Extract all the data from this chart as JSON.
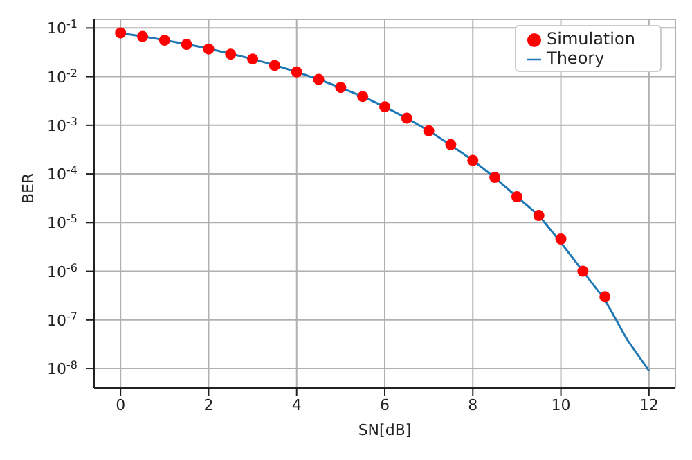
{
  "chart_data": {
    "type": "line",
    "xlabel": "SN[dB]",
    "ylabel": "BER",
    "log": "y",
    "grid": true,
    "legend": "top right",
    "xlim": [
      -0.6,
      12.6
    ],
    "xticks": [
      0,
      2,
      4,
      6,
      8,
      10,
      12
    ],
    "ylim": [
      4e-09,
      0.15
    ],
    "yticks": [
      {
        "value": 1e-08,
        "label": "10$^{-8}$"
      },
      {
        "value": 1e-07,
        "label": "10$^{-7}$"
      },
      {
        "value": 1e-06,
        "label": "10$^{-6}$"
      },
      {
        "value": 1e-05,
        "label": "10$^{-5}$"
      },
      {
        "value": 0.0001,
        "label": "10$^{-4}$"
      },
      {
        "value": 0.001,
        "label": "10$^{-3}$"
      },
      {
        "value": 0.01,
        "label": "10$^{-2}$"
      },
      {
        "value": 0.1,
        "label": "10$^{-1}$"
      }
    ],
    "series": [
      {
        "name": "Simulation",
        "type": "scatter",
        "marker": "circle",
        "color": "#ff0000",
        "x": [
          0,
          0.5,
          1,
          1.5,
          2,
          2.5,
          3,
          3.5,
          4,
          4.5,
          5,
          5.5,
          6,
          6.5,
          7,
          7.5,
          8,
          8.5,
          9,
          9.5,
          10,
          10.5,
          11
        ],
        "values": [
          0.079,
          0.067,
          0.056,
          0.046,
          0.037,
          0.029,
          0.023,
          0.017,
          0.0125,
          0.0088,
          0.006,
          0.0039,
          0.0024,
          0.0014,
          0.00077,
          0.0004,
          0.00019,
          8.5e-05,
          3.4e-05,
          1.4e-05,
          4.6e-06,
          1e-06,
          3e-07
        ]
      },
      {
        "name": "Theory",
        "marker": "none",
        "color": "#1f77b4",
        "x": [
          0,
          0.5,
          1,
          1.5,
          2,
          2.5,
          3,
          3.5,
          4,
          4.5,
          5,
          5.5,
          6,
          6.5,
          7,
          7.5,
          8,
          8.5,
          9,
          9.5,
          10,
          10.5,
          11,
          11.5,
          12
        ],
        "values": [
          0.0786,
          0.0671,
          0.0563,
          0.0464,
          0.0375,
          0.0296,
          0.0229,
          0.0173,
          0.0125,
          0.0088,
          0.0059,
          0.0039,
          0.0024,
          0.0014,
          0.00077,
          0.00039,
          0.00019,
          8.4e-05,
          3.4e-05,
          1.4e-05,
          3.9e-06,
          1e-06,
          2.6e-07,
          4e-08,
          9e-09
        ]
      }
    ]
  }
}
